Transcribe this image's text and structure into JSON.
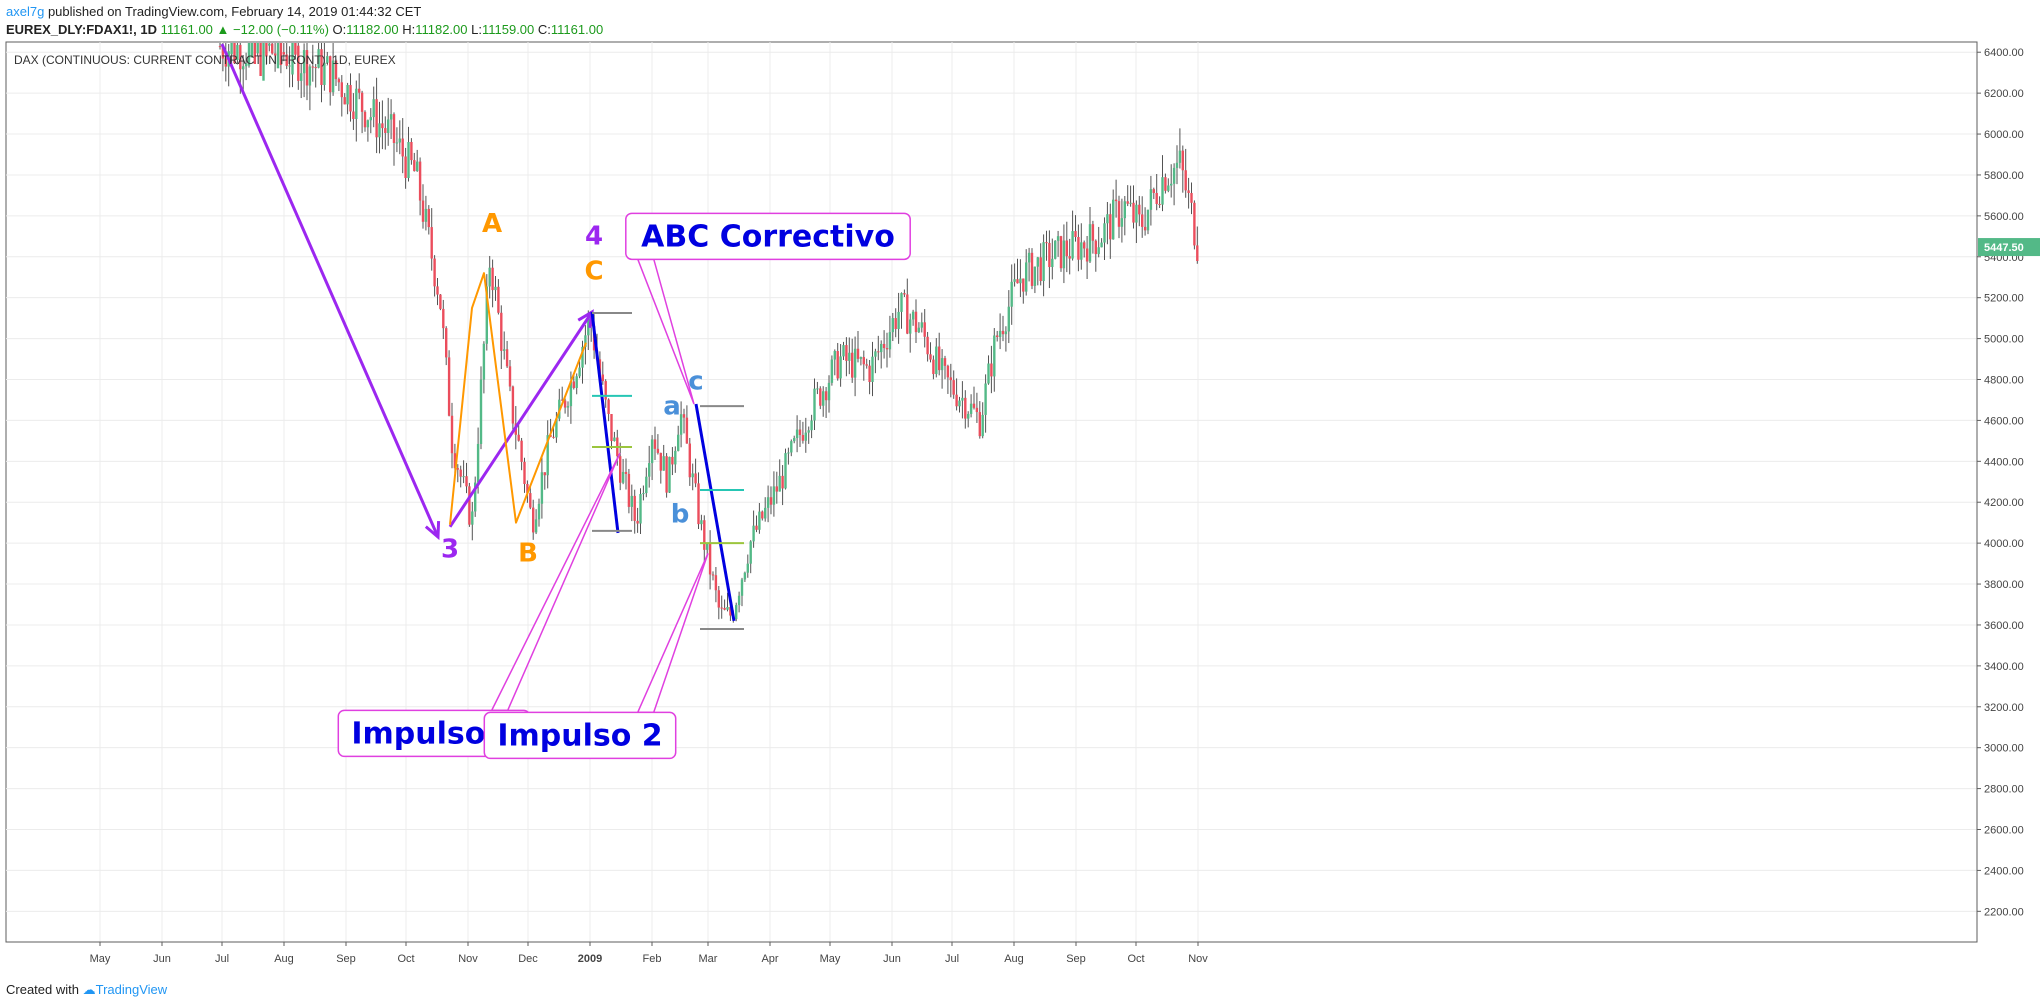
{
  "header": {
    "user": "axel7g",
    "published_text": "published on TradingView.com, February 14, 2019 01:44:32 CET",
    "symbol": "EUREX_DLY:FDAX1!, 1D",
    "last": "11161.00",
    "change": "−12.00 (−0.11%)",
    "open_label": "O:",
    "open": "11182.00",
    "high_label": "H:",
    "high": "11182.00",
    "low_label": "L:",
    "low": "11159.00",
    "close_label": "C:",
    "close": "11161.00"
  },
  "footer": {
    "created_with": "Created with",
    "brand": "TradingView"
  },
  "colors": {
    "up": "#53b987",
    "down": "#eb4d5c",
    "wick": "#535353",
    "purple": "#9c27f0",
    "orange": "#ff9800",
    "blue": "#0000e0",
    "light_blue": "#4a90d9",
    "magenta": "#e040e0",
    "teal": "#26c6b4",
    "lime": "#9bc53d",
    "gray": "#888888"
  },
  "chart_data": {
    "type": "candlestick",
    "title": "DAX (CONTINUOUS: CURRENT CONTRACT IN FRONT), 1D, EUREX",
    "ylim": [
      2050,
      6450
    ],
    "y_ticks": [
      2200,
      2400,
      2600,
      2800,
      3000,
      3200,
      3400,
      3600,
      3800,
      4000,
      4200,
      4400,
      4600,
      4800,
      5000,
      5200,
      5400,
      5600,
      5800,
      6000,
      6200,
      6400
    ],
    "x_ticks": [
      {
        "label": "May",
        "day": 0
      },
      {
        "label": "Jun",
        "day": 31
      },
      {
        "label": "Jul",
        "day": 61
      },
      {
        "label": "Aug",
        "day": 92
      },
      {
        "label": "Sep",
        "day": 123
      },
      {
        "label": "Oct",
        "day": 153
      },
      {
        "label": "Nov",
        "day": 184
      },
      {
        "label": "Dec",
        "day": 214
      },
      {
        "label": "2009",
        "day": 245
      },
      {
        "label": "Feb",
        "day": 276
      },
      {
        "label": "Mar",
        "day": 304
      },
      {
        "label": "Apr",
        "day": 335
      },
      {
        "label": "May",
        "day": 365
      },
      {
        "label": "Jun",
        "day": 396
      },
      {
        "label": "Jul",
        "day": 426
      },
      {
        "label": "Aug",
        "day": 457
      },
      {
        "label": "Sep",
        "day": 488
      },
      {
        "label": "Oct",
        "day": 518
      },
      {
        "label": "Nov",
        "day": 549
      }
    ],
    "last_price": "5447.50",
    "price_path": [
      [
        60,
        6430
      ],
      [
        92,
        6400
      ],
      [
        115,
        6300
      ],
      [
        130,
        6150
      ],
      [
        145,
        6000
      ],
      [
        158,
        5800
      ],
      [
        170,
        5200
      ],
      [
        176,
        4500
      ],
      [
        186,
        4100
      ],
      [
        195,
        5400
      ],
      [
        205,
        4700
      ],
      [
        210,
        4450
      ],
      [
        216,
        4100
      ],
      [
        225,
        4500
      ],
      [
        236,
        4800
      ],
      [
        245,
        5100
      ],
      [
        254,
        4600
      ],
      [
        262,
        4300
      ],
      [
        268,
        4100
      ],
      [
        276,
        4550
      ],
      [
        284,
        4300
      ],
      [
        290,
        4650
      ],
      [
        300,
        4100
      ],
      [
        310,
        3650
      ],
      [
        316,
        3650
      ],
      [
        325,
        4000
      ],
      [
        340,
        4300
      ],
      [
        355,
        4650
      ],
      [
        370,
        4900
      ],
      [
        385,
        4850
      ],
      [
        400,
        5150
      ],
      [
        410,
        5050
      ],
      [
        422,
        4800
      ],
      [
        432,
        4700
      ],
      [
        440,
        4600
      ],
      [
        448,
        5000
      ],
      [
        460,
        5300
      ],
      [
        475,
        5400
      ],
      [
        488,
        5450
      ],
      [
        500,
        5500
      ],
      [
        512,
        5650
      ],
      [
        520,
        5550
      ],
      [
        532,
        5800
      ],
      [
        540,
        5850
      ],
      [
        546,
        5600
      ],
      [
        549,
        5450
      ]
    ],
    "annotations": [
      {
        "label": "3",
        "color": "purple",
        "day": 175,
        "price": 3930
      },
      {
        "label": "A",
        "color": "orange",
        "day": 196,
        "price": 5520
      },
      {
        "label": "B",
        "color": "orange",
        "day": 214,
        "price": 3910
      },
      {
        "label": "4",
        "color": "purple",
        "day": 247,
        "price": 5460
      },
      {
        "label": "C",
        "color": "orange",
        "day": 247,
        "price": 5290
      },
      {
        "label": "a",
        "color": "light_blue",
        "day": 286,
        "price": 4630
      },
      {
        "label": "b",
        "color": "light_blue",
        "day": 290,
        "price": 4100
      },
      {
        "label": "c",
        "color": "light_blue",
        "day": 298,
        "price": 4750
      }
    ],
    "callouts": [
      {
        "label": "Impulso 1",
        "color": "blue",
        "day": 167,
        "price": 3070,
        "target_day": 260,
        "target_price": 4440
      },
      {
        "label": "Impulso 2",
        "color": "blue",
        "day": 240,
        "price": 3060,
        "target_day": 304,
        "target_price": 3950
      },
      {
        "label": "ABC Correctivo",
        "color": "blue",
        "day": 334,
        "price": 5500,
        "target_day": 297,
        "target_price": 4680
      }
    ]
  }
}
